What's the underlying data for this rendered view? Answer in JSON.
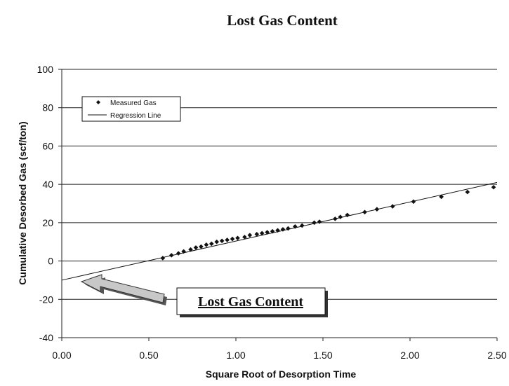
{
  "chart_data": {
    "type": "scatter",
    "title": "Lost Gas Content",
    "xlabel": "Square Root of Desorption Time",
    "ylabel": "Cumulative Desorbed Gas (scf/ton)",
    "xlim": [
      0,
      2.5
    ],
    "ylim": [
      -40,
      100
    ],
    "x_ticks": [
      "0.00",
      "0.50",
      "1.00",
      "1.50",
      "2.00",
      "2.50"
    ],
    "y_ticks": [
      "100",
      "80",
      "60",
      "40",
      "20",
      "0",
      "-20",
      "-40"
    ],
    "grid": "horizontal",
    "legend_position": "top-left",
    "series": [
      {
        "name": "Measured Gas",
        "kind": "scatter",
        "x": [
          0.58,
          0.63,
          0.67,
          0.7,
          0.74,
          0.77,
          0.8,
          0.83,
          0.86,
          0.89,
          0.92,
          0.95,
          0.98,
          1.01,
          1.05,
          1.08,
          1.12,
          1.15,
          1.18,
          1.21,
          1.24,
          1.27,
          1.3,
          1.34,
          1.38,
          1.45,
          1.48,
          1.57,
          1.6,
          1.64,
          1.74,
          1.81,
          1.9,
          2.02,
          2.18,
          2.33,
          2.48
        ],
        "y": [
          1.5,
          3,
          4,
          5,
          6,
          7,
          7.5,
          8.5,
          9,
          10,
          10.5,
          11,
          11.5,
          12,
          12.5,
          13.5,
          14,
          14.5,
          15,
          15.5,
          16,
          16.5,
          17,
          18,
          18.5,
          20,
          20.5,
          22,
          23,
          24,
          25.5,
          27,
          28.5,
          31,
          33.5,
          36,
          38.5
        ]
      },
      {
        "name": "Regression Line",
        "kind": "line",
        "x": [
          0,
          2.5
        ],
        "y": [
          -10,
          41
        ]
      }
    ],
    "annotations": [
      {
        "text": "Lost Gas Content",
        "points_to": {
          "x": 0,
          "y": -10
        }
      }
    ]
  }
}
